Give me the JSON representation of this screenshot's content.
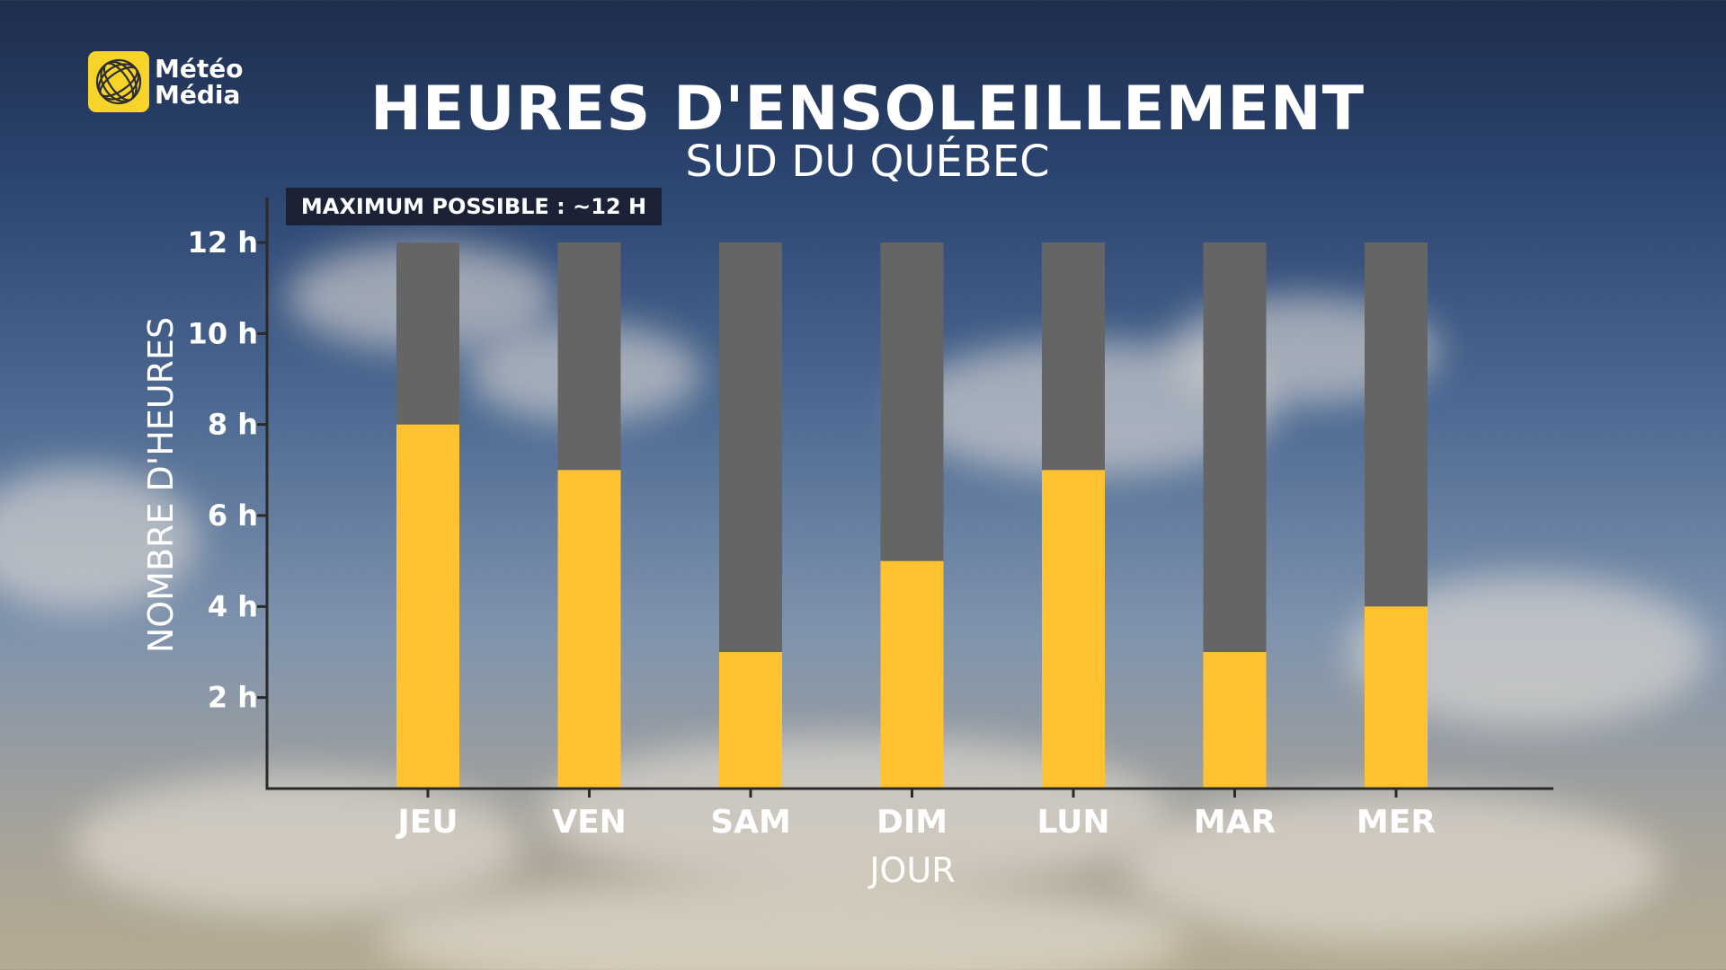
{
  "brand": {
    "name_line1": "Météo",
    "name_line2": "Média"
  },
  "chart_data": {
    "type": "bar",
    "title": "HEURES D'ENSOLEILLEMENT",
    "subtitle": "SUD DU QUÉBEC",
    "annotation": "MAXIMUM POSSIBLE : ~12 H",
    "xlabel": "JOUR",
    "ylabel": "NOMBRE D'HEURES",
    "categories": [
      "JEU",
      "VEN",
      "SAM",
      "DIM",
      "LUN",
      "MAR",
      "MER"
    ],
    "series": [
      {
        "name": "",
        "values": [
          8,
          7,
          3,
          5,
          7,
          3,
          4
        ]
      }
    ],
    "max_possible": 12,
    "ylim": [
      0,
      12
    ],
    "yticks": [
      2,
      4,
      6,
      8,
      10,
      12
    ],
    "ytick_labels": [
      "2 h",
      "4 h",
      "6 h",
      "8 h",
      "10 h",
      "12 h"
    ],
    "grid": false,
    "colors": {
      "sunshine": "#ffc332",
      "remaining": "#656565",
      "axis": "#2a2a2a",
      "text": "#ffffff"
    }
  }
}
